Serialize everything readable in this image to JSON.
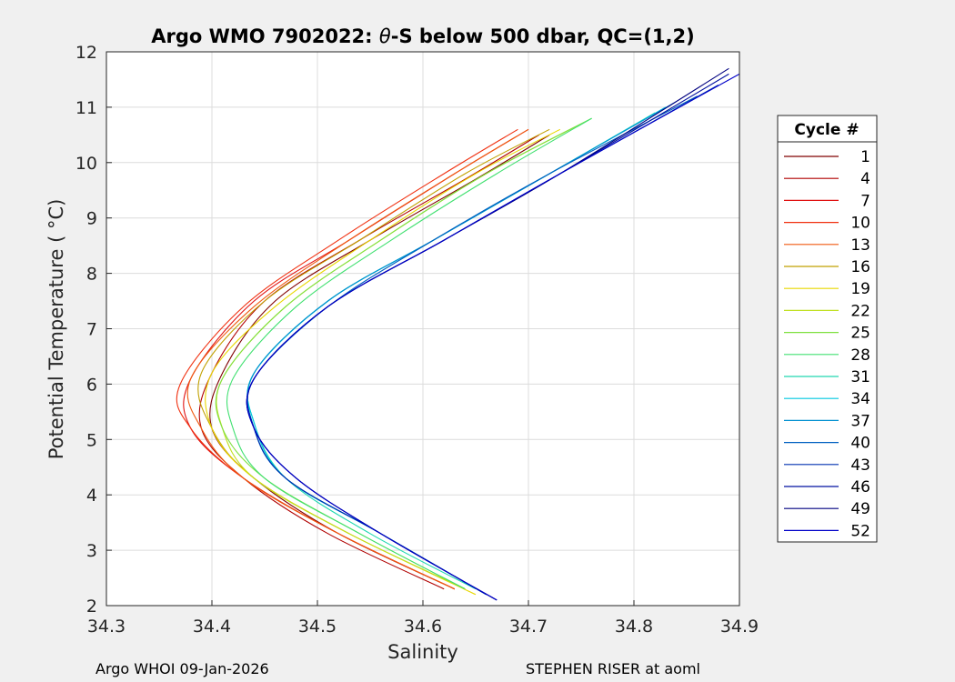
{
  "chart_data": {
    "type": "line",
    "title_prefix": "Argo WMO 7902022: ",
    "title_theta": "θ",
    "title_suffix": "-S below 500 dbar,  QC=(1,2)",
    "xlabel": "Salinity",
    "ylabel": "Potential Temperature ( °C)",
    "xlim": [
      34.3,
      34.9
    ],
    "ylim": [
      2,
      12
    ],
    "xticks": [
      34.3,
      34.4,
      34.5,
      34.6,
      34.7,
      34.8,
      34.9
    ],
    "yticks": [
      2,
      3,
      4,
      5,
      6,
      7,
      8,
      9,
      10,
      11,
      12
    ],
    "grid": true,
    "legend_position": "outside-right",
    "legend": {
      "title": "Cycle #",
      "entries": [
        {
          "label": "1",
          "color": "#800000"
        },
        {
          "label": "4",
          "color": "#b00000"
        },
        {
          "label": "7",
          "color": "#e01010"
        },
        {
          "label": "10",
          "color": "#f03010"
        },
        {
          "label": "13",
          "color": "#f05a10"
        },
        {
          "label": "16",
          "color": "#c0a000"
        },
        {
          "label": "19",
          "color": "#e8d800"
        },
        {
          "label": "22",
          "color": "#c0e020"
        },
        {
          "label": "25",
          "color": "#80e040"
        },
        {
          "label": "28",
          "color": "#40e070"
        },
        {
          "label": "31",
          "color": "#20d8b0"
        },
        {
          "label": "34",
          "color": "#00c8e0"
        },
        {
          "label": "37",
          "color": "#0090d0"
        },
        {
          "label": "40",
          "color": "#0060c0"
        },
        {
          "label": "43",
          "color": "#0030b0"
        },
        {
          "label": "46",
          "color": "#0010a0"
        },
        {
          "label": "49",
          "color": "#000080"
        },
        {
          "label": "52",
          "color": "#0000c8"
        }
      ]
    },
    "series_profiles": [
      {
        "name": "1",
        "color": "#800000",
        "x": [
          34.63,
          34.52,
          34.44,
          34.4,
          34.41,
          34.46,
          34.55,
          34.65,
          34.72
        ],
        "y": [
          2.3,
          3.3,
          4.3,
          5.2,
          6.2,
          7.5,
          8.6,
          9.7,
          10.5
        ]
      },
      {
        "name": "4",
        "color": "#b00000",
        "x": [
          34.62,
          34.51,
          34.43,
          34.39,
          34.4,
          34.45,
          34.54,
          34.64,
          34.71
        ],
        "y": [
          2.3,
          3.3,
          4.3,
          5.2,
          6.2,
          7.5,
          8.6,
          9.7,
          10.5
        ]
      },
      {
        "name": "7",
        "color": "#e01010",
        "x": [
          34.63,
          34.52,
          34.43,
          34.38,
          34.38,
          34.44,
          34.53,
          34.63,
          34.7
        ],
        "y": [
          2.3,
          3.3,
          4.3,
          5.2,
          6.1,
          7.5,
          8.6,
          9.8,
          10.6
        ]
      },
      {
        "name": "10",
        "color": "#f03010",
        "x": [
          34.63,
          34.52,
          34.43,
          34.38,
          34.37,
          34.43,
          34.52,
          34.62,
          34.69
        ],
        "y": [
          2.3,
          3.3,
          4.3,
          5.2,
          6.0,
          7.4,
          8.6,
          9.8,
          10.6
        ]
      },
      {
        "name": "13",
        "color": "#f05a10",
        "x": [
          34.63,
          34.52,
          34.43,
          34.39,
          34.38,
          34.44,
          34.53,
          34.63,
          34.7
        ],
        "y": [
          2.3,
          3.3,
          4.3,
          5.2,
          6.1,
          7.4,
          8.6,
          9.8,
          10.6
        ]
      },
      {
        "name": "16",
        "color": "#c0a000",
        "x": [
          34.64,
          34.53,
          34.44,
          34.4,
          34.39,
          34.45,
          34.54,
          34.64,
          34.72
        ],
        "y": [
          2.3,
          3.3,
          4.3,
          5.2,
          6.2,
          7.5,
          8.6,
          9.8,
          10.6
        ]
      },
      {
        "name": "19",
        "color": "#e8d800",
        "x": [
          34.65,
          34.53,
          34.44,
          34.4,
          34.4,
          34.46,
          34.55,
          34.65,
          34.73
        ],
        "y": [
          2.2,
          3.3,
          4.3,
          5.2,
          6.2,
          7.4,
          8.6,
          9.8,
          10.6
        ]
      },
      {
        "name": "22",
        "color": "#c0e020",
        "x": [
          34.64,
          34.53,
          34.44,
          34.41,
          34.41,
          34.47,
          34.56,
          34.66,
          34.75
        ],
        "y": [
          2.3,
          3.3,
          4.3,
          5.2,
          6.1,
          7.4,
          8.6,
          9.8,
          10.7
        ]
      },
      {
        "name": "25",
        "color": "#80e040",
        "x": [
          34.64,
          34.54,
          34.45,
          34.41,
          34.41,
          34.47,
          34.56,
          34.66,
          34.76
        ],
        "y": [
          2.3,
          3.3,
          4.3,
          5.2,
          6.1,
          7.4,
          8.6,
          9.8,
          10.8
        ]
      },
      {
        "name": "28",
        "color": "#40e070",
        "x": [
          34.64,
          34.54,
          34.45,
          34.42,
          34.42,
          34.48,
          34.57,
          34.67,
          34.76
        ],
        "y": [
          2.3,
          3.3,
          4.3,
          5.2,
          6.1,
          7.4,
          8.6,
          9.8,
          10.8
        ]
      },
      {
        "name": "31",
        "color": "#20d8b0",
        "x": [
          34.65,
          34.55,
          34.47,
          34.44,
          34.44,
          34.51,
          34.61,
          34.72,
          34.82
        ],
        "y": [
          2.3,
          3.3,
          4.3,
          5.3,
          6.2,
          7.5,
          8.6,
          9.8,
          10.9
        ]
      },
      {
        "name": "34",
        "color": "#00c8e0",
        "x": [
          34.66,
          34.56,
          34.47,
          34.44,
          34.44,
          34.51,
          34.61,
          34.72,
          34.83
        ],
        "y": [
          2.2,
          3.3,
          4.3,
          5.3,
          6.2,
          7.5,
          8.6,
          9.8,
          11.0
        ]
      },
      {
        "name": "37",
        "color": "#0090d0",
        "x": [
          34.66,
          34.56,
          34.47,
          34.44,
          34.44,
          34.51,
          34.61,
          34.72,
          34.84
        ],
        "y": [
          2.2,
          3.3,
          4.3,
          5.2,
          6.2,
          7.5,
          8.6,
          9.8,
          11.1
        ]
      },
      {
        "name": "40",
        "color": "#0060c0",
        "x": [
          34.66,
          34.56,
          34.47,
          34.44,
          34.44,
          34.51,
          34.61,
          34.72,
          34.86
        ],
        "y": [
          2.2,
          3.3,
          4.3,
          5.2,
          6.1,
          7.4,
          8.6,
          9.8,
          11.2
        ]
      },
      {
        "name": "43",
        "color": "#0030b0",
        "x": [
          34.66,
          34.56,
          34.47,
          34.44,
          34.44,
          34.51,
          34.62,
          34.73,
          34.88
        ],
        "y": [
          2.2,
          3.3,
          4.3,
          5.2,
          6.1,
          7.4,
          8.6,
          9.8,
          11.4
        ]
      },
      {
        "name": "46",
        "color": "#0010a0",
        "x": [
          34.67,
          34.56,
          34.48,
          34.44,
          34.44,
          34.51,
          34.62,
          34.73,
          34.89
        ],
        "y": [
          2.1,
          3.3,
          4.3,
          5.2,
          6.1,
          7.4,
          8.6,
          9.8,
          11.6
        ]
      },
      {
        "name": "49",
        "color": "#000080",
        "x": [
          34.67,
          34.56,
          34.48,
          34.44,
          34.44,
          34.51,
          34.62,
          34.73,
          34.89
        ],
        "y": [
          2.1,
          3.3,
          4.3,
          5.2,
          6.1,
          7.4,
          8.6,
          9.8,
          11.7
        ]
      },
      {
        "name": "52",
        "color": "#0000c8",
        "x": [
          34.67,
          34.56,
          34.48,
          34.44,
          34.44,
          34.51,
          34.62,
          34.73,
          34.9
        ],
        "y": [
          2.1,
          3.3,
          4.3,
          5.2,
          6.1,
          7.4,
          8.6,
          9.8,
          11.6
        ]
      }
    ]
  },
  "footer": {
    "left": "Argo WHOI 09-Jan-2026",
    "right": "STEPHEN RISER at aoml"
  }
}
